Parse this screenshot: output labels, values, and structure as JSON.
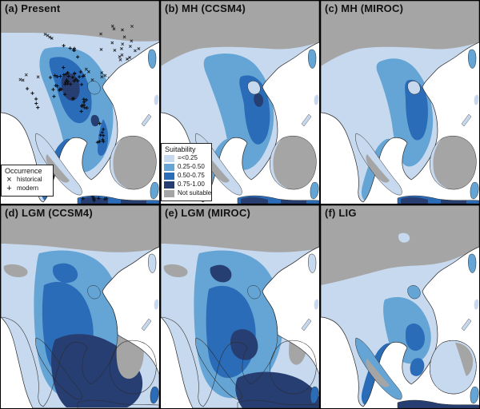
{
  "panels": [
    {
      "id": "a",
      "label": "(a) Present"
    },
    {
      "id": "b",
      "label": "(b) MH (CCSM4)"
    },
    {
      "id": "c",
      "label": "(c) MH (MIROC)"
    },
    {
      "id": "d",
      "label": "(d) LGM (CCSM4)"
    },
    {
      "id": "e",
      "label": "(e) LGM (MIROC)"
    },
    {
      "id": "f",
      "label": "(f) LIG"
    }
  ],
  "suitability_legend": {
    "title": "Suitability",
    "classes": [
      {
        "label": "=<0.25",
        "color": "#c7d9ee"
      },
      {
        "label": "0.25-0.50",
        "color": "#64a5d6"
      },
      {
        "label": "0.50-0.75",
        "color": "#2b6cb8"
      },
      {
        "label": "0.75-1.00",
        "color": "#273e72"
      },
      {
        "label": "Not suitable",
        "color": "#a5a5a5"
      }
    ]
  },
  "occurrence_legend": {
    "title": "Occurrence",
    "items": [
      {
        "symbol": "×",
        "label": "historical"
      },
      {
        "symbol": "+",
        "label": "modern"
      }
    ]
  },
  "colors": {
    "ocean": "#ffffff",
    "coastline": "#2b2b2b",
    "marker": "#0a0a0a",
    "panel_border": "#000000"
  }
}
